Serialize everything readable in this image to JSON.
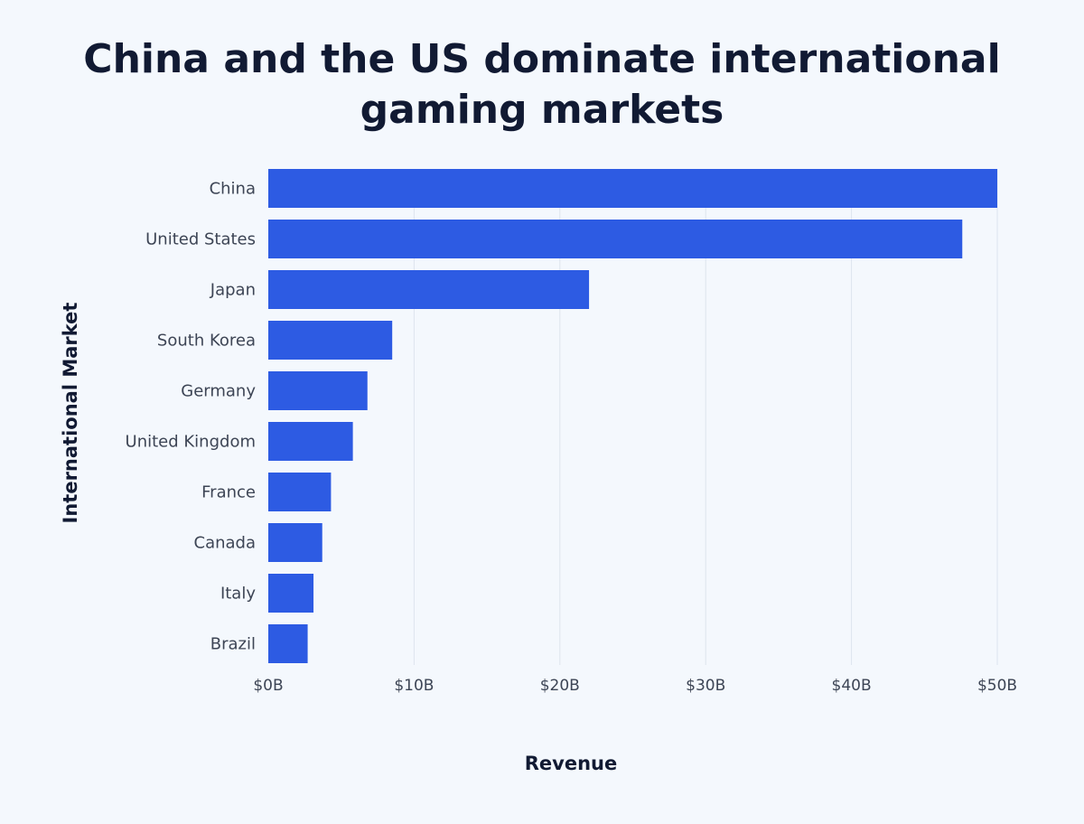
{
  "chart_data": {
    "type": "bar",
    "orientation": "horizontal",
    "title": "China and the US dominate international gaming markets",
    "xlabel": "Revenue",
    "ylabel": "International Market",
    "categories": [
      "China",
      "United States",
      "Japan",
      "South Korea",
      "Germany",
      "United Kingdom",
      "France",
      "Canada",
      "Italy",
      "Brazil"
    ],
    "values": [
      50.0,
      47.6,
      22.0,
      8.5,
      6.8,
      5.8,
      4.3,
      3.7,
      3.1,
      2.7
    ],
    "unit": "billion USD",
    "xlim": [
      0,
      50
    ],
    "xticks": [
      0,
      10,
      20,
      30,
      40,
      50
    ],
    "xtick_labels": [
      "$0B",
      "$10B",
      "$20B",
      "$30B",
      "$40B",
      "$50B"
    ],
    "grid": "vertical",
    "colors": {
      "bar": "#2d5be3",
      "background": "#f4f8fd",
      "grid": "#dde4ee"
    }
  }
}
